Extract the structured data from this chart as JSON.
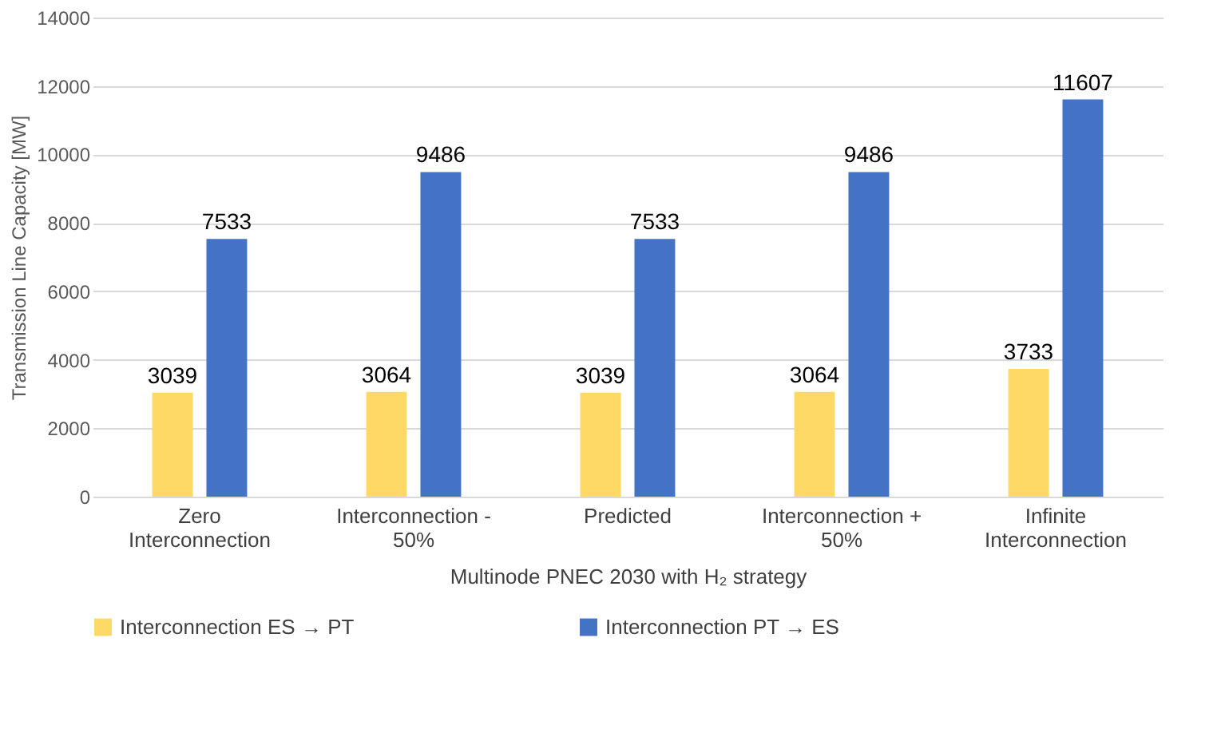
{
  "chart_data": {
    "type": "bar",
    "xlabel": "Multinode PNEC 2030 with H₂ strategy",
    "ylabel": "Transmission Line Capacity [MW]",
    "categories": [
      "Zero Interconnection",
      "Interconnection - 50%",
      "Predicted",
      "Interconnection + 50%",
      "Infinite Interconnection"
    ],
    "series": [
      {
        "name": "Interconnection ES → PT",
        "color": "#ffd966",
        "values": [
          3039,
          3064,
          3039,
          3064,
          3733
        ]
      },
      {
        "name": "Interconnection PT → ES",
        "color": "#4472c4",
        "values": [
          7533,
          9486,
          7533,
          9486,
          11607
        ]
      }
    ],
    "ylim": [
      0,
      14000
    ],
    "yticks": [
      0,
      2000,
      4000,
      6000,
      8000,
      10000,
      12000,
      14000
    ],
    "grid": "y",
    "legend": "bottom",
    "data_labels": true
  }
}
